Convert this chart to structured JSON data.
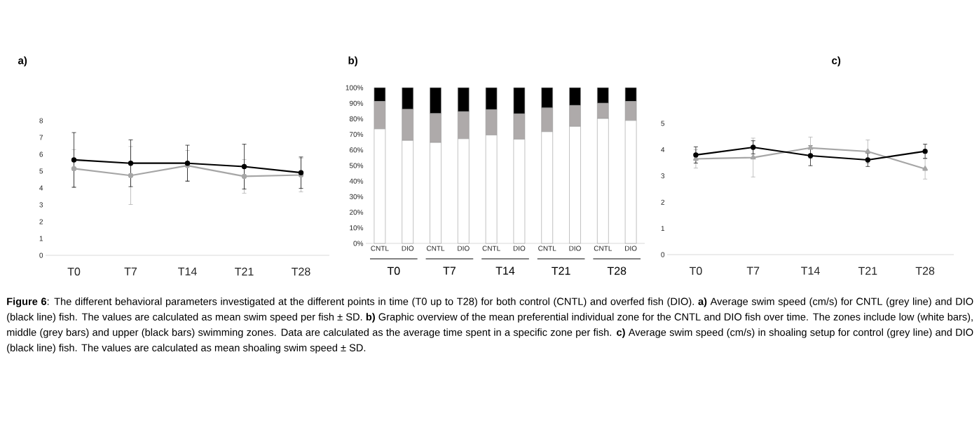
{
  "chart_data": [
    {
      "type": "line",
      "title": "a)",
      "categories": [
        "T0",
        "T7",
        "T14",
        "T21",
        "T28"
      ],
      "ylim": [
        0,
        8
      ],
      "yticks": [
        0,
        1,
        2,
        3,
        4,
        5,
        6,
        7,
        8
      ],
      "marker": "circle",
      "series": [
        {
          "color": "#a6a6a6",
          "values": [
            5.15,
            4.74,
            5.33,
            4.69,
            4.77
          ],
          "errors": [
            1.13,
            1.72,
            0.9,
            1.0,
            1.0
          ]
        },
        {
          "color": "#000000",
          "values": [
            5.67,
            5.47,
            5.47,
            5.27,
            4.91
          ],
          "errors": [
            1.62,
            1.39,
            1.07,
            1.33,
            0.93
          ]
        }
      ]
    },
    {
      "type": "bar",
      "stacked": true,
      "title": "b)",
      "categories": [
        "CNTL",
        "DIO",
        "CNTL",
        "DIO",
        "CNTL",
        "DIO",
        "CNTL",
        "DIO",
        "CNTL",
        "DIO"
      ],
      "ylim": [
        0,
        100
      ],
      "yticks": [
        {
          "value": 0,
          "label": "0%"
        },
        {
          "value": 10,
          "label": "10%"
        },
        {
          "value": 20,
          "label": "20%"
        },
        {
          "value": 30,
          "label": "30%"
        },
        {
          "value": 40,
          "label": "40%"
        },
        {
          "value": 50,
          "label": "50%"
        },
        {
          "value": 60,
          "label": "60%"
        },
        {
          "value": 70,
          "label": "70%"
        },
        {
          "value": 80,
          "label": "80%"
        },
        {
          "value": 90,
          "label": "90%"
        },
        {
          "value": 100,
          "label": "100%"
        }
      ],
      "annotations": [
        "T0",
        "T7",
        "T14",
        "T21",
        "T28"
      ],
      "series": [
        {
          "color": "#ffffff",
          "values": [
            73.5,
            66.1,
            64.8,
            67.2,
            69.6,
            66.9,
            71.7,
            75.1,
            80.2,
            78.9
          ]
        },
        {
          "color": "#aeaaaa",
          "values": [
            17.7,
            20.0,
            18.6,
            17.4,
            16.3,
            16.3,
            15.3,
            13.5,
            9.8,
            12.3
          ]
        },
        {
          "color": "#000000",
          "values": [
            8.8,
            13.9,
            16.6,
            15.4,
            14.1,
            16.8,
            13.0,
            11.4,
            10.0,
            8.8
          ]
        }
      ]
    },
    {
      "type": "line",
      "title": "c)",
      "categories": [
        "T0",
        "T7",
        "T14",
        "T21",
        "T28"
      ],
      "ylim": [
        0,
        5
      ],
      "yticks": [
        0,
        1,
        2,
        3,
        4,
        5
      ],
      "annotations": [
        "**Figure 6**: The different behavioral parameters investigated at the different points in time (T0 up to T28) for both control (CNTL) and overfed fish (DIO). **a)** Average swim speed (cm/s) for CNTL (grey line) and DIO (black line) fish. The values are calculated as mean swim speed per fish ± SD. **b)** Graphic overview of the mean preferential individual zone for the CNTL and DIO fish over time. The zones include low (white bars), middle (grey bars) and upper (black bars) swimming zones. Data are calculated as the average time spent in a specific zone per fish. **c)** Average swim speed (cm/s) in shoaling setup for control (grey line) and DIO (black line) fish. The values are calculated as mean shoaling swim speed ± SD."
      ],
      "series": [
        {
          "color": "#a6a6a6",
          "marker": "triangle",
          "values": [
            3.65,
            3.7,
            4.07,
            3.93,
            3.27
          ],
          "errors": [
            0.35,
            0.74,
            0.41,
            0.44,
            0.39
          ]
        },
        {
          "color": "#000000",
          "marker": "circle",
          "values": [
            3.8,
            4.09,
            3.77,
            3.61,
            3.94
          ],
          "errors": [
            0.31,
            0.25,
            0.38,
            0.25,
            0.27
          ]
        }
      ]
    }
  ]
}
